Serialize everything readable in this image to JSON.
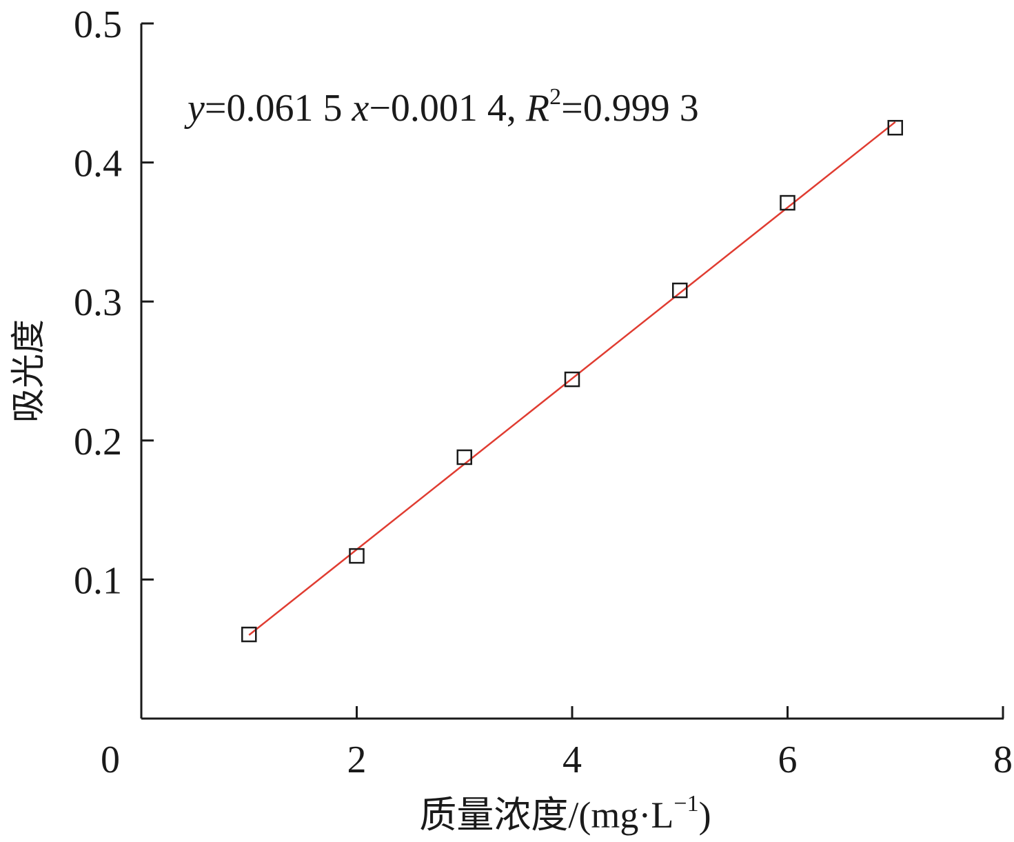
{
  "chart_data": {
    "type": "scatter",
    "x_label": [
      "质量浓度/(mg·L",
      "−1",
      ")"
    ],
    "y_label": "吸光度",
    "annotation": [
      "y",
      "=0.061 5 ",
      "x",
      "−0.001 4, ",
      "R",
      "2",
      "=0.999 3"
    ],
    "x": [
      1,
      2,
      3,
      4,
      5,
      6,
      7
    ],
    "values": [
      0.0605,
      0.117,
      0.188,
      0.244,
      0.308,
      0.371,
      0.425
    ],
    "color": "#1a1a1a",
    "fit": {
      "x": [
        1,
        7
      ],
      "values": [
        0.0601,
        0.4291
      ],
      "color": "#e03c31"
    },
    "xlim": [
      0,
      8
    ],
    "xticks": [
      0,
      2,
      4,
      6,
      8
    ],
    "ylim": [
      0,
      0.5
    ],
    "yticks": [
      0.1,
      0.2,
      0.3,
      0.4,
      0.5
    ]
  }
}
